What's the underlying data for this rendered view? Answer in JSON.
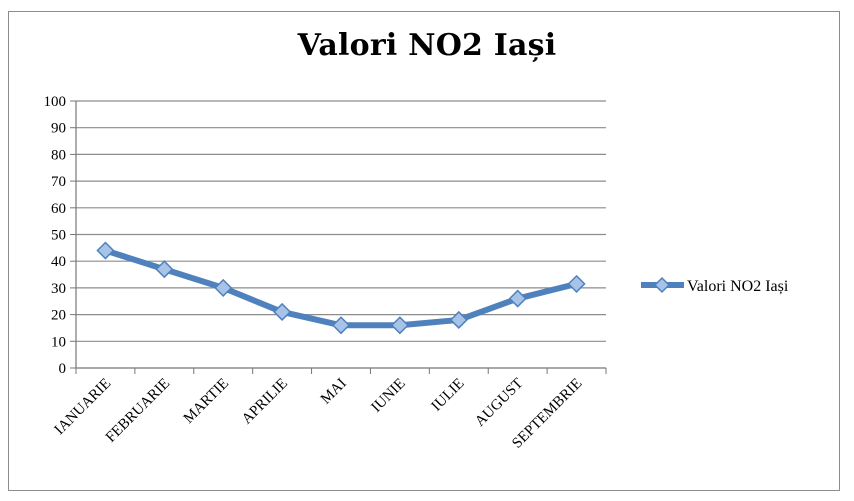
{
  "chart_data": {
    "type": "line",
    "title": "Valori NO2 Iași",
    "categories": [
      "IANUARIE",
      "FEBRUARIE",
      "MARTIE",
      "APRILIE",
      "MAI",
      "IUNIE",
      "IULIE",
      "AUGUST",
      "SEPTEMBRIE"
    ],
    "series": [
      {
        "name": "Valori NO2 Iași",
        "values": [
          44,
          37,
          30,
          21,
          16,
          16,
          18,
          26,
          31.5
        ]
      }
    ],
    "ylim": [
      0,
      100
    ],
    "yticks": [
      "0",
      "10",
      "20",
      "30",
      "40",
      "50",
      "60",
      "70",
      "80",
      "90",
      "100"
    ],
    "grid": true,
    "legend": "right",
    "colors": {
      "line": "#4f81bd",
      "marker": "#a7c3e8",
      "grid": "#8c8c8c"
    }
  }
}
